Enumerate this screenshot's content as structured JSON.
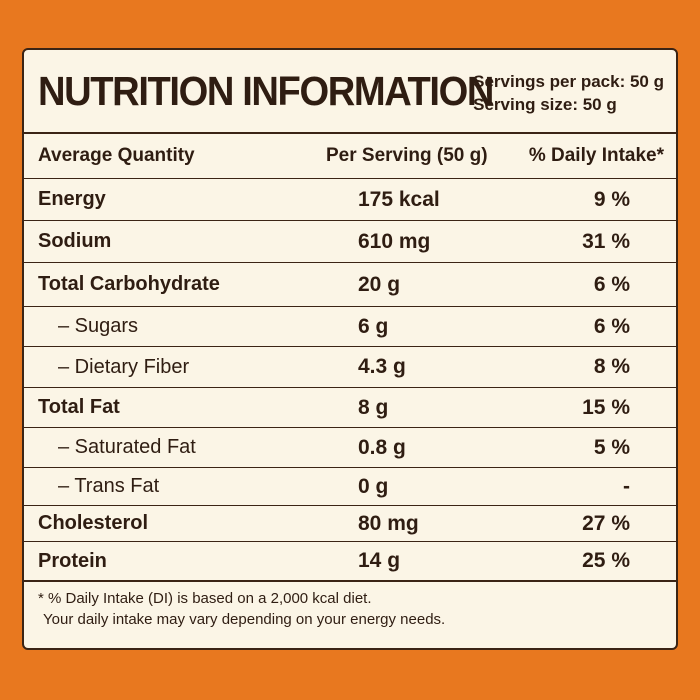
{
  "label": {
    "title": "NUTRITION INFORMATION",
    "servings_per_pack": "Servings per pack: 50 g",
    "serving_size": "Serving size: 50 g"
  },
  "columns": {
    "quantity": "Average Quantity",
    "per_serving": "Per Serving (50 g)",
    "daily_intake": "% Daily Intake*"
  },
  "rows": [
    {
      "name": "Energy",
      "per_serving": "175 kcal",
      "daily_intake": "9 %"
    },
    {
      "name": "Sodium",
      "per_serving": "610 mg",
      "daily_intake": "31 %"
    },
    {
      "name": "Total Carbohydrate",
      "per_serving": "20 g",
      "daily_intake": "6 %"
    },
    {
      "name": "– Sugars",
      "per_serving": "6 g",
      "daily_intake": "6 %"
    },
    {
      "name": "– Dietary Fiber",
      "per_serving": "4.3 g",
      "daily_intake": "8 %"
    },
    {
      "name": "Total Fat",
      "per_serving": "8 g",
      "daily_intake": "15 %"
    },
    {
      "name": "– Saturated Fat",
      "per_serving": "0.8 g",
      "daily_intake": "5 %"
    },
    {
      "name": "– Trans Fat",
      "per_serving": "0 g",
      "daily_intake": "-"
    },
    {
      "name": "Cholesterol",
      "per_serving": "80 mg",
      "daily_intake": "27 %"
    },
    {
      "name": "Protein",
      "per_serving": "14 g",
      "daily_intake": "25 %"
    }
  ],
  "footnote": {
    "line1": "* % Daily Intake (DI) is based on a 2,000 kcal diet.",
    "line2": "Your daily intake may vary depending on your energy needs."
  },
  "colors": {
    "background": "#e8781f",
    "panel": "#fbf5e6",
    "text": "#2f1d12"
  }
}
